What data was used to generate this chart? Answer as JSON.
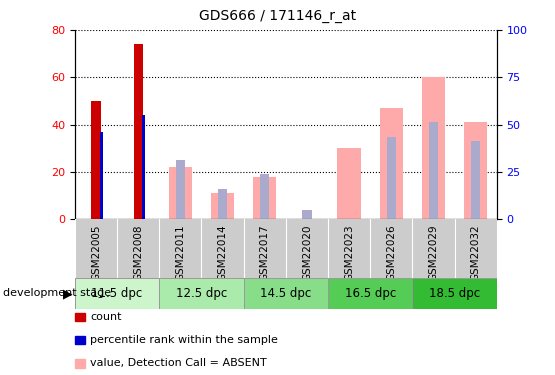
{
  "title": "GDS666 / 171146_r_at",
  "samples": [
    "GSM22005",
    "GSM22008",
    "GSM22011",
    "GSM22014",
    "GSM22017",
    "GSM22020",
    "GSM22023",
    "GSM22026",
    "GSM22029",
    "GSM22032"
  ],
  "count_values": [
    50,
    74,
    0,
    0,
    0,
    0,
    0,
    0,
    0,
    0
  ],
  "percentile_rank_values": [
    37,
    44,
    0,
    0,
    0,
    0,
    0,
    0,
    0,
    0
  ],
  "absent_value": [
    0,
    0,
    22,
    11,
    18,
    0,
    30,
    47,
    60,
    41
  ],
  "absent_rank": [
    0,
    0,
    25,
    13,
    19,
    4,
    0,
    35,
    41,
    33
  ],
  "count_color": "#cc0000",
  "percentile_color": "#0000cc",
  "absent_value_color": "#ffaaaa",
  "absent_rank_color": "#aaaacc",
  "stage_colors": [
    "#ccf5cc",
    "#aaeaaa",
    "#88dd88",
    "#55cc55",
    "#33bb33"
  ],
  "stages": [
    {
      "label": "11.5 dpc",
      "count": 2
    },
    {
      "label": "12.5 dpc",
      "count": 2
    },
    {
      "label": "14.5 dpc",
      "count": 2
    },
    {
      "label": "16.5 dpc",
      "count": 2
    },
    {
      "label": "18.5 dpc",
      "count": 2
    }
  ],
  "ylim_left": [
    0,
    80
  ],
  "ylim_right": [
    0,
    100
  ],
  "yticks_left": [
    0,
    20,
    40,
    60,
    80
  ],
  "yticks_right": [
    0,
    25,
    50,
    75,
    100
  ],
  "sample_bg_color": "#cccccc",
  "background_color": "#ffffff"
}
